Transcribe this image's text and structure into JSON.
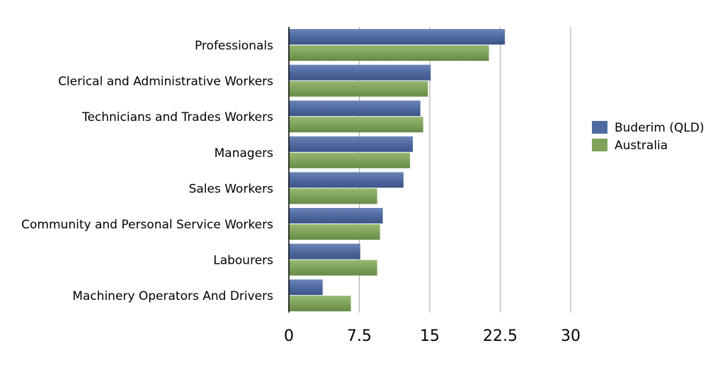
{
  "chart_data": {
    "type": "bar",
    "orientation": "horizontal",
    "categories": [
      "Professionals",
      "Clerical and Administrative Workers",
      "Technicians and Trades Workers",
      "Managers",
      "Sales Workers",
      "Community and Personal Service Workers",
      "Labourers",
      "Machinery Operators And Drivers"
    ],
    "series": [
      {
        "name": "Buderim (QLD)",
        "color": "#4f6aa0",
        "values": [
          23.0,
          15.1,
          14.0,
          13.2,
          12.2,
          10.0,
          7.6,
          3.6
        ]
      },
      {
        "name": "Australia",
        "color": "#7ea35a",
        "values": [
          21.3,
          14.8,
          14.3,
          12.9,
          9.4,
          9.7,
          9.4,
          6.6
        ]
      }
    ],
    "xlim": [
      0,
      30
    ],
    "xticks": [
      "0",
      "7.5",
      "15",
      "22.5",
      "30"
    ],
    "xtick_values": [
      0,
      7.5,
      15,
      22.5,
      30
    ],
    "grid": "vertical",
    "legend_position": "right"
  }
}
